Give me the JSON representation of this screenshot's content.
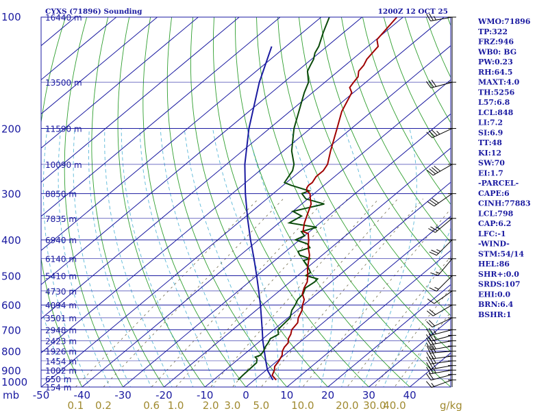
{
  "header": {
    "station": "CYXS (71896) Sounding",
    "time": "1200Z 12 OCT 25"
  },
  "axes": {
    "pressure_unit": "mb",
    "mixing_ratio_unit": "g/kg"
  },
  "colors": {
    "frame": "#1a1aa0",
    "isobar": "#1a1aa0",
    "isotherm": "#1a1aa0",
    "dry_adiabat": "#2e9e2e",
    "moist_adiabat": "#5ab8d8",
    "mixing_ratio": "#6f6a4a",
    "temperature": "#a00000",
    "dewpoint": "#0a4a0a",
    "parcel": "#1a1aa0",
    "wind": "#000000",
    "mixing_label": "#a08a30"
  },
  "chart_data": {
    "type": "skewt",
    "title": "CYXS (71896) Sounding",
    "valid_time": "1200Z 12 OCT 25",
    "pressure_levels": [
      100,
      200,
      300,
      400,
      500,
      600,
      700,
      800,
      900,
      1000
    ],
    "pressure_range_mb": [
      1000,
      100
    ],
    "temperature_ticks": [
      -50,
      -40,
      -30,
      -20,
      -10,
      0,
      10,
      20,
      30,
      40
    ],
    "temperature_range_c": [
      -50,
      50
    ],
    "height_labels": [
      {
        "p": 100,
        "label": "16440 m"
      },
      {
        "p": 150,
        "label": "13500 m"
      },
      {
        "p": 200,
        "label": "11590 m"
      },
      {
        "p": 250,
        "label": "10090 m"
      },
      {
        "p": 300,
        "label": "8850 m"
      },
      {
        "p": 350,
        "label": "7835 m"
      },
      {
        "p": 400,
        "label": "6940 m"
      },
      {
        "p": 450,
        "label": "6140 m"
      },
      {
        "p": 500,
        "label": "5410 m"
      },
      {
        "p": 550,
        "label": "4730 m"
      },
      {
        "p": 600,
        "label": "4094 m"
      },
      {
        "p": 650,
        "label": "3501 m"
      },
      {
        "p": 700,
        "label": "2948 m"
      },
      {
        "p": 750,
        "label": "2423 m"
      },
      {
        "p": 800,
        "label": "1926 m"
      },
      {
        "p": 850,
        "label": "1454 m"
      },
      {
        "p": 900,
        "label": "1002 m"
      },
      {
        "p": 950,
        "label": "650 m"
      },
      {
        "p": 1000,
        "label": "154 m"
      }
    ],
    "mixing_ratio_labels": [
      "0.1",
      "0.2",
      "0.6",
      "1.0",
      "2.0",
      "3.0",
      "5.0",
      "10.0",
      "20.0",
      "30.0",
      "40.0"
    ],
    "mixing_ratio_values": [
      0.1,
      0.2,
      0.6,
      1.0,
      2.0,
      3.0,
      5.0,
      10.0,
      20.0,
      30.0,
      40.0
    ],
    "series": [
      {
        "key": "temperature",
        "points": [
          {
            "p": 957,
            "t": 5.3
          },
          {
            "p": 930,
            "t": 3.0
          },
          {
            "p": 900,
            "t": 2.0
          },
          {
            "p": 880,
            "t": 1.0
          },
          {
            "p": 850,
            "t": 0.4
          },
          {
            "p": 820,
            "t": -0.5
          },
          {
            "p": 800,
            "t": -1.6
          },
          {
            "p": 780,
            "t": -2.3
          },
          {
            "p": 760,
            "t": -2.6
          },
          {
            "p": 740,
            "t": -3.8
          },
          {
            "p": 720,
            "t": -4.5
          },
          {
            "p": 700,
            "t": -5.6
          },
          {
            "p": 670,
            "t": -6.2
          },
          {
            "p": 650,
            "t": -7.5
          },
          {
            "p": 620,
            "t": -8.8
          },
          {
            "p": 600,
            "t": -10.2
          },
          {
            "p": 580,
            "t": -11.4
          },
          {
            "p": 560,
            "t": -13.5
          },
          {
            "p": 540,
            "t": -14.8
          },
          {
            "p": 520,
            "t": -15.8
          },
          {
            "p": 500,
            "t": -17.5
          },
          {
            "p": 480,
            "t": -19.5
          },
          {
            "p": 460,
            "t": -21.3
          },
          {
            "p": 440,
            "t": -23.1
          },
          {
            "p": 420,
            "t": -25.6
          },
          {
            "p": 400,
            "t": -27.8
          },
          {
            "p": 385,
            "t": -29.7
          },
          {
            "p": 380,
            "t": -31.6
          },
          {
            "p": 360,
            "t": -33.8
          },
          {
            "p": 340,
            "t": -35.7
          },
          {
            "p": 320,
            "t": -37.7
          },
          {
            "p": 310,
            "t": -39.4
          },
          {
            "p": 300,
            "t": -41.0
          },
          {
            "p": 295,
            "t": -42.6
          },
          {
            "p": 290,
            "t": -43.4
          },
          {
            "p": 285,
            "t": -43.8
          },
          {
            "p": 280,
            "t": -43.7
          },
          {
            "p": 270,
            "t": -44.5
          },
          {
            "p": 260,
            "t": -44.5
          },
          {
            "p": 250,
            "t": -45.3
          },
          {
            "p": 230,
            "t": -48.5
          },
          {
            "p": 200,
            "t": -53.5
          },
          {
            "p": 180,
            "t": -57.3
          },
          {
            "p": 160,
            "t": -60.4
          },
          {
            "p": 155,
            "t": -62.4
          },
          {
            "p": 150,
            "t": -63.0
          },
          {
            "p": 145,
            "t": -63.5
          },
          {
            "p": 140,
            "t": -65.0
          },
          {
            "p": 135,
            "t": -65.5
          },
          {
            "p": 130,
            "t": -66.5
          },
          {
            "p": 120,
            "t": -67.5
          },
          {
            "p": 115,
            "t": -69.8
          },
          {
            "p": 100,
            "t": -71.5
          }
        ]
      },
      {
        "key": "dewpoint",
        "points": [
          {
            "p": 957,
            "t": -4.0
          },
          {
            "p": 930,
            "t": -4.2
          },
          {
            "p": 900,
            "t": -4.3
          },
          {
            "p": 860,
            "t": -4.5
          },
          {
            "p": 840,
            "t": -5.5
          },
          {
            "p": 830,
            "t": -6.5
          },
          {
            "p": 820,
            "t": -5.8
          },
          {
            "p": 800,
            "t": -6.2
          },
          {
            "p": 780,
            "t": -7.0
          },
          {
            "p": 760,
            "t": -7.5
          },
          {
            "p": 740,
            "t": -8.2
          },
          {
            "p": 720,
            "t": -7.5
          },
          {
            "p": 700,
            "t": -9.0
          },
          {
            "p": 680,
            "t": -9.2
          },
          {
            "p": 650,
            "t": -9.5
          },
          {
            "p": 620,
            "t": -11.3
          },
          {
            "p": 600,
            "t": -12.0
          },
          {
            "p": 580,
            "t": -13.0
          },
          {
            "p": 560,
            "t": -13.3
          },
          {
            "p": 540,
            "t": -14.5
          },
          {
            "p": 520,
            "t": -14.0
          },
          {
            "p": 510,
            "t": -14.2
          },
          {
            "p": 500,
            "t": -18.0
          },
          {
            "p": 490,
            "t": -17.8
          },
          {
            "p": 470,
            "t": -20.5
          },
          {
            "p": 455,
            "t": -23.0
          },
          {
            "p": 450,
            "t": -22.0
          },
          {
            "p": 440,
            "t": -25.5
          },
          {
            "p": 430,
            "t": -27.0
          },
          {
            "p": 420,
            "t": -25.2
          },
          {
            "p": 410,
            "t": -27.0
          },
          {
            "p": 400,
            "t": -31.0
          },
          {
            "p": 390,
            "t": -30.0
          },
          {
            "p": 380,
            "t": -32.0
          },
          {
            "p": 370,
            "t": -29.5
          },
          {
            "p": 360,
            "t": -37.5
          },
          {
            "p": 345,
            "t": -36.5
          },
          {
            "p": 335,
            "t": -40.0
          },
          {
            "p": 320,
            "t": -34.5
          },
          {
            "p": 310,
            "t": -40.5
          },
          {
            "p": 300,
            "t": -43.0
          },
          {
            "p": 295,
            "t": -42.0
          },
          {
            "p": 285,
            "t": -48.0
          },
          {
            "p": 280,
            "t": -50.5
          },
          {
            "p": 260,
            "t": -52.0
          },
          {
            "p": 250,
            "t": -53.5
          },
          {
            "p": 230,
            "t": -58.0
          },
          {
            "p": 200,
            "t": -64.0
          },
          {
            "p": 160,
            "t": -72.0
          },
          {
            "p": 150,
            "t": -74.0
          },
          {
            "p": 140,
            "t": -77.5
          },
          {
            "p": 135,
            "t": -78.5
          },
          {
            "p": 130,
            "t": -79.5
          },
          {
            "p": 125,
            "t": -81.0
          },
          {
            "p": 120,
            "t": -82.0
          },
          {
            "p": 110,
            "t": -85.0
          },
          {
            "p": 100,
            "t": -88.0
          }
        ]
      },
      {
        "key": "parcel",
        "points": [
          {
            "p": 957,
            "t": 4.5
          },
          {
            "p": 900,
            "t": 0.3
          },
          {
            "p": 850,
            "t": -2.8
          },
          {
            "p": 800,
            "t": -6.0
          },
          {
            "p": 750,
            "t": -9.4
          },
          {
            "p": 700,
            "t": -12.8
          },
          {
            "p": 650,
            "t": -16.5
          },
          {
            "p": 600,
            "t": -20.5
          },
          {
            "p": 550,
            "t": -25.0
          },
          {
            "p": 500,
            "t": -30.0
          },
          {
            "p": 450,
            "t": -35.6
          },
          {
            "p": 400,
            "t": -42.0
          },
          {
            "p": 350,
            "t": -49.0
          },
          {
            "p": 300,
            "t": -56.8
          },
          {
            "p": 250,
            "t": -65.5
          },
          {
            "p": 200,
            "t": -75.0
          },
          {
            "p": 150,
            "t": -86.0
          },
          {
            "p": 120,
            "t": -93.5
          }
        ]
      }
    ],
    "wind_barbs": [
      {
        "p": 957,
        "dir": 250,
        "spd": 15
      },
      {
        "p": 925,
        "dir": 255,
        "spd": 22
      },
      {
        "p": 900,
        "dir": 260,
        "spd": 25
      },
      {
        "p": 875,
        "dir": 260,
        "spd": 28
      },
      {
        "p": 850,
        "dir": 262,
        "spd": 30
      },
      {
        "p": 825,
        "dir": 262,
        "spd": 30
      },
      {
        "p": 800,
        "dir": 265,
        "spd": 30
      },
      {
        "p": 775,
        "dir": 260,
        "spd": 28
      },
      {
        "p": 750,
        "dir": 260,
        "spd": 27
      },
      {
        "p": 725,
        "dir": 255,
        "spd": 25
      },
      {
        "p": 700,
        "dir": 255,
        "spd": 25
      },
      {
        "p": 650,
        "dir": 245,
        "spd": 20
      },
      {
        "p": 600,
        "dir": 240,
        "spd": 18
      },
      {
        "p": 550,
        "dir": 235,
        "spd": 12
      },
      {
        "p": 500,
        "dir": 225,
        "spd": 15
      },
      {
        "p": 450,
        "dir": 220,
        "spd": 15
      },
      {
        "p": 400,
        "dir": 225,
        "spd": 25
      },
      {
        "p": 350,
        "dir": 230,
        "spd": 25
      },
      {
        "p": 300,
        "dir": 235,
        "spd": 30
      },
      {
        "p": 250,
        "dir": 240,
        "spd": 40
      },
      {
        "p": 200,
        "dir": 245,
        "spd": 35
      },
      {
        "p": 150,
        "dir": 255,
        "spd": 30
      },
      {
        "p": 100,
        "dir": 260,
        "spd": 25
      }
    ]
  },
  "indices": [
    "WMO:71896",
    "TP:322",
    "FRZ:946",
    "WB0: BG",
    "PW:0.23",
    "RH:64.5",
    "MAXT:4.0",
    "TH:5256",
    "L57:6.8",
    "LCL:848",
    "LI:7.2",
    "SI:6.9",
    "TT:48",
    "KI:12",
    "SW:70",
    "EI:1.7",
    "-PARCEL-",
    "CAPE:6",
    "CINH:77883",
    "LCL:798",
    "CAP:6.2",
    "LFC:-1",
    "-WIND-",
    "STM:54/14",
    "HEL:86",
    "SHR+:0.0",
    "SRDS:107",
    "EHI:0.0",
    "BRN:6.4",
    "BSHR:1"
  ]
}
